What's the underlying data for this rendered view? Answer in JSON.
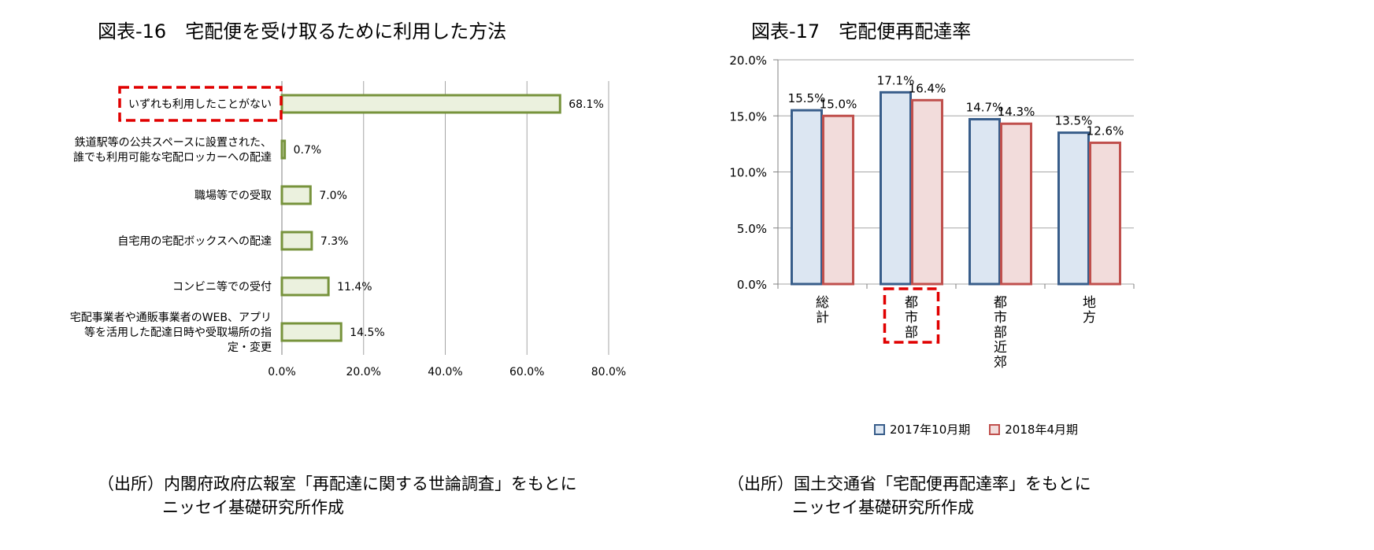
{
  "left": {
    "title": "図表-16　宅配便を受け取るために利用した方法",
    "source_line1": "（出所）内閣府政府広報室「再配達に関する世論調査」をもとに",
    "source_line2": "ニッセイ基礎研究所作成"
  },
  "right": {
    "title": "図表-17　宅配便再配達率",
    "source_line1": "（出所）国土交通省「宅配便再配達率」をもとに",
    "source_line2": "ニッセイ基礎研究所作成"
  },
  "chart_data": [
    {
      "type": "bar",
      "orientation": "horizontal",
      "categories": [
        [
          "いずれも利用したことがない"
        ],
        [
          "鉄道駅等の公共スペースに設置された、",
          "誰でも利用可能な宅配ロッカーへの配達"
        ],
        [
          "職場等での受取"
        ],
        [
          "自宅用の宅配ボックスへの配達"
        ],
        [
          "コンビニ等での受付"
        ],
        [
          "宅配事業者や通販事業者のWEB、アプリ",
          "等を活用した配達日時や受取場所の指",
          "定・変更"
        ]
      ],
      "values": [
        68.1,
        0.7,
        7.0,
        7.3,
        11.4,
        14.5
      ],
      "value_labels": [
        "68.1%",
        "0.7%",
        "7.0%",
        "7.3%",
        "11.4%",
        "14.5%"
      ],
      "xlim": [
        0,
        80
      ],
      "xticks": [
        "0.0%",
        "20.0%",
        "40.0%",
        "60.0%",
        "80.0%"
      ],
      "highlighted_category_index": 0,
      "colors": {
        "fill": "#ebf1de",
        "stroke": "#77933c",
        "highlight": "#e00000",
        "grid": "#a6a6a6"
      },
      "grid": true
    },
    {
      "type": "bar",
      "orientation": "vertical",
      "categories": [
        [
          "総",
          "計"
        ],
        [
          "都",
          "市",
          "部"
        ],
        [
          "都",
          "市",
          "部",
          "近",
          "郊"
        ],
        [
          "地",
          "方"
        ]
      ],
      "series": [
        {
          "name": "2017年10月期",
          "values": [
            15.5,
            17.1,
            14.7,
            13.5
          ],
          "labels": [
            "15.5%",
            "17.1%",
            "14.7%",
            "13.5%"
          ],
          "fill": "#dce6f2",
          "stroke": "#385d8a"
        },
        {
          "name": "2018年4月期",
          "values": [
            15.0,
            16.4,
            14.3,
            12.6
          ],
          "labels": [
            "15.0%",
            "16.4%",
            "14.3%",
            "12.6%"
          ],
          "fill": "#f2dcdb",
          "stroke": "#c0504d"
        }
      ],
      "ylim": [
        0,
        20
      ],
      "yticks": [
        "0.0%",
        "5.0%",
        "10.0%",
        "15.0%",
        "20.0%"
      ],
      "highlighted_category_index": 1,
      "legend": "bottom",
      "colors": {
        "highlight": "#e00000",
        "grid": "#a6a6a6"
      },
      "grid": true
    }
  ]
}
